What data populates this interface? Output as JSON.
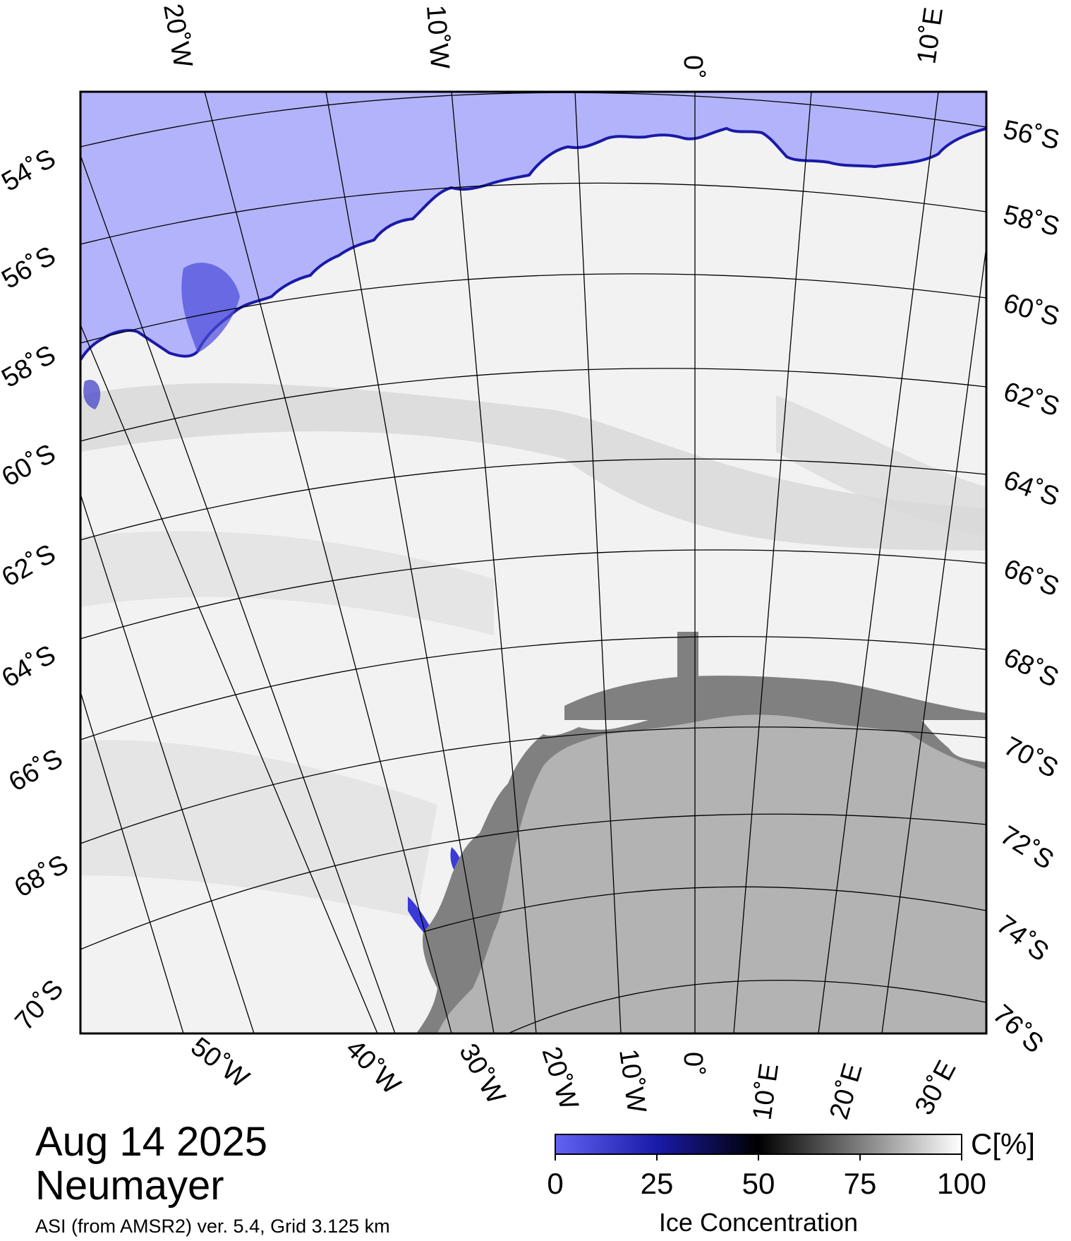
{
  "date": "Aug 14 2025",
  "station": "Neumayer",
  "source": "ASI (from AMSR2) ver. 5.4,  Grid 3.125 km",
  "colorbar": {
    "unit": "C[%]",
    "title": "Ice Concentration",
    "ticks": [
      "0",
      "25",
      "50",
      "75",
      "100"
    ],
    "colors": [
      "#6262f2",
      "#1a1aa8",
      "#000000",
      "#7d7d7d",
      "#ffffff"
    ]
  },
  "colors": {
    "open_water": "#b3b3fb",
    "land": "#b3b3b3",
    "ice_shelf": "#808080",
    "ice": "#f2f2f2",
    "frame": "#000000"
  },
  "top_labels": [
    "20˚W",
    "10˚W",
    "0˚",
    "10˚E"
  ],
  "bottom_labels": [
    "50˚W",
    "40˚W",
    "30˚W",
    "20˚W",
    "10˚W",
    "0˚",
    "10˚E",
    "20˚E",
    "30˚E"
  ],
  "left_labels": [
    "54˚S",
    "56˚S",
    "58˚S",
    "60˚S",
    "62˚S",
    "64˚S",
    "66˚S",
    "68˚S",
    "70˚S"
  ],
  "right_labels": [
    "56˚S",
    "58˚S",
    "60˚S",
    "62˚S",
    "64˚S",
    "66˚S",
    "68˚S",
    "70˚S",
    "72˚S",
    "74˚S",
    "76˚S"
  ]
}
